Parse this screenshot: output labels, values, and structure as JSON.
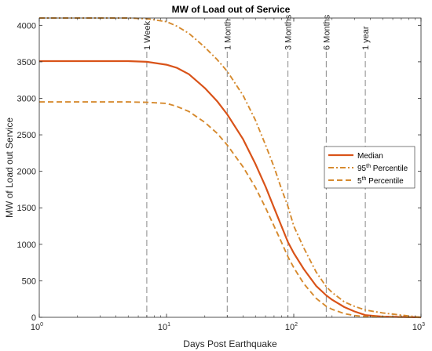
{
  "chart_data": {
    "type": "line",
    "title": "MW of Load out of Service",
    "xlabel": "Days Post Earthquake",
    "ylabel": "MW of Load out Service",
    "x_scale": "log",
    "xlim": [
      1,
      1000
    ],
    "ylim": [
      0,
      4100
    ],
    "x_ticks": [
      1,
      10,
      100,
      1000
    ],
    "x_tick_labels": [
      {
        "base": "10",
        "exp": "0"
      },
      {
        "base": "10",
        "exp": "1"
      },
      {
        "base": "10",
        "exp": "2"
      },
      {
        "base": "10",
        "exp": "3"
      }
    ],
    "y_ticks": [
      0,
      500,
      1000,
      1500,
      2000,
      2500,
      3000,
      3500,
      4000
    ],
    "legend_position": "right",
    "colors": {
      "median": "#d95319",
      "percentile": "#d68a2e",
      "marker": "#888888"
    },
    "markers": [
      {
        "label": "1 Week",
        "x": 7
      },
      {
        "label": "1 Month",
        "x": 30
      },
      {
        "label": "3 Months",
        "x": 90
      },
      {
        "label": "6 Months",
        "x": 180
      },
      {
        "label": "1 year",
        "x": 365
      }
    ],
    "series": [
      {
        "name": "Median",
        "legend_sup": "",
        "legend_rest": "",
        "style": "solid",
        "x": [
          1,
          2,
          5,
          7,
          10,
          12,
          15,
          20,
          25,
          30,
          40,
          50,
          60,
          70,
          80,
          90,
          100,
          120,
          150,
          180,
          200,
          250,
          300,
          365,
          500,
          700,
          1000
        ],
        "y": [
          3510,
          3510,
          3510,
          3500,
          3460,
          3420,
          3330,
          3140,
          2960,
          2780,
          2440,
          2100,
          1790,
          1500,
          1250,
          1030,
          880,
          660,
          430,
          300,
          240,
          140,
          80,
          30,
          10,
          5,
          0
        ]
      },
      {
        "name": "95",
        "legend_sup": "th",
        "legend_rest": " Percentile",
        "style": "dashdot",
        "x": [
          1,
          2,
          5,
          7,
          10,
          12,
          15,
          20,
          25,
          30,
          40,
          50,
          60,
          70,
          80,
          90,
          100,
          120,
          150,
          180,
          200,
          250,
          300,
          365,
          500,
          700,
          1000
        ],
        "y": [
          4100,
          4100,
          4100,
          4090,
          4050,
          3990,
          3890,
          3700,
          3530,
          3370,
          3040,
          2700,
          2360,
          2060,
          1760,
          1520,
          1250,
          950,
          620,
          420,
          340,
          210,
          150,
          100,
          60,
          30,
          0
        ]
      },
      {
        "name": "5",
        "legend_sup": "th",
        "legend_rest": " Percentile",
        "style": "dashed",
        "x": [
          1,
          2,
          5,
          7,
          10,
          12,
          15,
          20,
          25,
          30,
          40,
          50,
          60,
          70,
          80,
          90,
          100,
          120,
          150,
          180,
          200,
          250,
          300,
          365,
          500,
          700,
          1000
        ],
        "y": [
          2950,
          2950,
          2950,
          2945,
          2930,
          2890,
          2820,
          2670,
          2520,
          2360,
          2060,
          1780,
          1500,
          1250,
          1030,
          830,
          680,
          460,
          260,
          150,
          110,
          50,
          25,
          10,
          5,
          2,
          0
        ]
      }
    ]
  }
}
